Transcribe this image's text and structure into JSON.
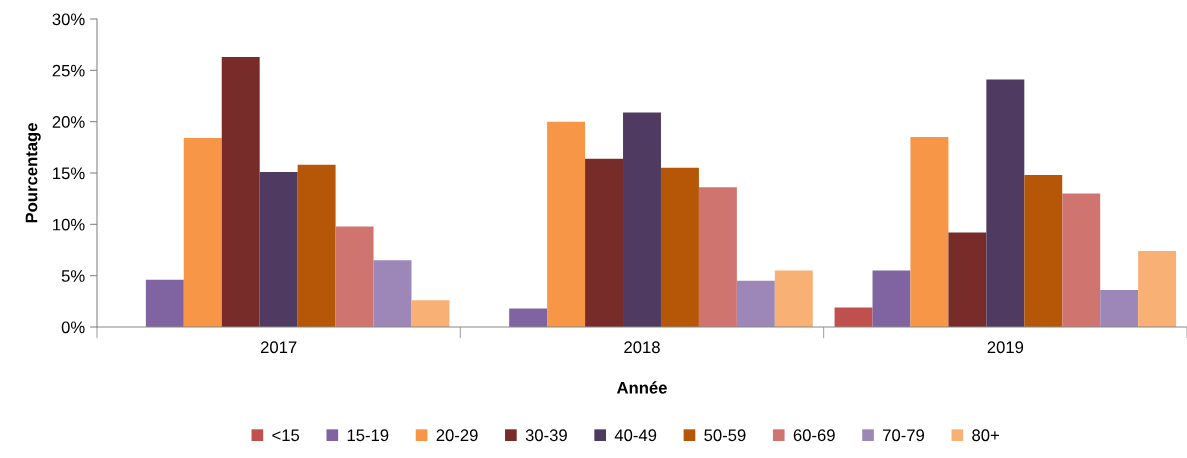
{
  "chart_data": {
    "type": "bar",
    "xlabel": "Année",
    "ylabel": "Pourcentage",
    "categories": [
      "2017",
      "2018",
      "2019"
    ],
    "series": [
      {
        "name": "<15",
        "color": "#c0504d",
        "values": [
          null,
          null,
          1.9
        ]
      },
      {
        "name": "15-19",
        "color": "#8064a2",
        "values": [
          4.6,
          1.8,
          5.5
        ]
      },
      {
        "name": "20-29",
        "color": "#f79646",
        "values": [
          18.4,
          20.0,
          18.5
        ]
      },
      {
        "name": "30-39",
        "color": "#772c2a",
        "values": [
          26.3,
          16.4,
          9.2
        ]
      },
      {
        "name": "40-49",
        "color": "#4f3b62",
        "values": [
          15.1,
          20.9,
          24.1
        ]
      },
      {
        "name": "50-59",
        "color": "#b65708",
        "values": [
          15.8,
          15.5,
          14.8
        ]
      },
      {
        "name": "60-69",
        "color": "#d07470",
        "values": [
          9.8,
          13.6,
          13.0
        ]
      },
      {
        "name": "70-79",
        "color": "#9c87b8",
        "values": [
          6.5,
          4.5,
          3.6
        ]
      },
      {
        "name": "80+",
        "color": "#f9b074",
        "values": [
          2.6,
          5.5,
          7.4
        ]
      }
    ],
    "ylim": [
      0,
      30
    ],
    "yticks": [
      {
        "value": 0,
        "label": "0%"
      },
      {
        "value": 5,
        "label": "5%"
      },
      {
        "value": 10,
        "label": "10%"
      },
      {
        "value": 15,
        "label": "15%"
      },
      {
        "value": 20,
        "label": "20%"
      },
      {
        "value": 25,
        "label": "25%"
      },
      {
        "value": 30,
        "label": "30%"
      }
    ],
    "grid": false,
    "legend": "bottom"
  }
}
